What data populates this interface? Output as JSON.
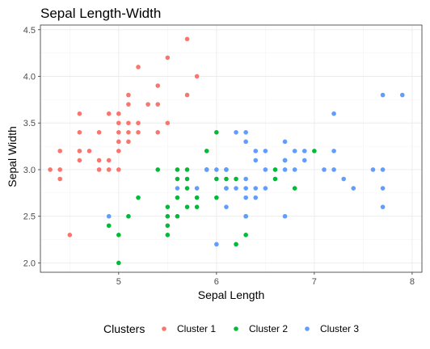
{
  "chart_data": {
    "type": "scatter",
    "title": "Sepal Length-Width",
    "xlabel": "Sepal Length",
    "ylabel": "Sepal Width",
    "xlim": [
      4.2,
      8.1
    ],
    "ylim": [
      1.9,
      4.55
    ],
    "x_ticks": [
      5,
      6,
      7,
      8
    ],
    "y_ticks": [
      2.0,
      2.5,
      3.0,
      3.5,
      4.0,
      4.5
    ],
    "x_tick_labels": [
      "5",
      "6",
      "7",
      "8"
    ],
    "y_tick_labels": [
      "2.0",
      "2.5",
      "3.0",
      "3.5",
      "4.0",
      "4.5"
    ],
    "grid": true,
    "legend": {
      "title": "Clusters",
      "position": "bottom"
    },
    "series": [
      {
        "name": "Cluster 1",
        "color": "#F8766D",
        "points": [
          [
            4.3,
            3.0
          ],
          [
            4.4,
            2.9
          ],
          [
            4.4,
            3.0
          ],
          [
            4.4,
            3.2
          ],
          [
            4.5,
            2.3
          ],
          [
            4.6,
            3.1
          ],
          [
            4.6,
            3.2
          ],
          [
            4.6,
            3.4
          ],
          [
            4.6,
            3.6
          ],
          [
            4.7,
            3.2
          ],
          [
            4.8,
            3.0
          ],
          [
            4.8,
            3.1
          ],
          [
            4.8,
            3.4
          ],
          [
            4.9,
            3.0
          ],
          [
            4.9,
            3.1
          ],
          [
            4.9,
            3.6
          ],
          [
            5.0,
            3.0
          ],
          [
            5.0,
            3.2
          ],
          [
            5.0,
            3.3
          ],
          [
            5.0,
            3.4
          ],
          [
            5.0,
            3.5
          ],
          [
            5.0,
            3.6
          ],
          [
            5.1,
            3.3
          ],
          [
            5.1,
            3.4
          ],
          [
            5.1,
            3.5
          ],
          [
            5.1,
            3.7
          ],
          [
            5.1,
            3.8
          ],
          [
            5.2,
            3.4
          ],
          [
            5.2,
            3.5
          ],
          [
            5.2,
            4.1
          ],
          [
            5.3,
            3.7
          ],
          [
            5.4,
            3.4
          ],
          [
            5.4,
            3.7
          ],
          [
            5.4,
            3.9
          ],
          [
            5.5,
            3.5
          ],
          [
            5.5,
            4.2
          ],
          [
            5.7,
            3.8
          ],
          [
            5.7,
            4.4
          ],
          [
            5.8,
            4.0
          ]
        ]
      },
      {
        "name": "Cluster 2",
        "color": "#00BA38",
        "points": [
          [
            4.9,
            2.4
          ],
          [
            5.0,
            2.0
          ],
          [
            5.0,
            2.3
          ],
          [
            5.1,
            2.5
          ],
          [
            5.2,
            2.7
          ],
          [
            5.4,
            3.0
          ],
          [
            5.5,
            2.3
          ],
          [
            5.5,
            2.4
          ],
          [
            5.5,
            2.5
          ],
          [
            5.5,
            2.6
          ],
          [
            5.6,
            2.5
          ],
          [
            5.6,
            2.7
          ],
          [
            5.6,
            2.9
          ],
          [
            5.6,
            3.0
          ],
          [
            5.7,
            2.6
          ],
          [
            5.7,
            2.8
          ],
          [
            5.7,
            2.9
          ],
          [
            5.7,
            3.0
          ],
          [
            5.8,
            2.6
          ],
          [
            5.8,
            2.7
          ],
          [
            5.9,
            3.0
          ],
          [
            5.9,
            3.2
          ],
          [
            6.0,
            2.7
          ],
          [
            6.0,
            2.9
          ],
          [
            6.0,
            3.4
          ],
          [
            6.1,
            2.8
          ],
          [
            6.1,
            2.9
          ],
          [
            6.1,
            3.0
          ],
          [
            6.2,
            2.2
          ],
          [
            6.2,
            2.9
          ],
          [
            6.3,
            2.3
          ],
          [
            6.3,
            2.5
          ],
          [
            6.6,
            2.9
          ],
          [
            6.6,
            3.0
          ],
          [
            6.7,
            3.1
          ],
          [
            6.8,
            2.8
          ],
          [
            7.0,
            3.2
          ]
        ]
      },
      {
        "name": "Cluster 3",
        "color": "#619CFF",
        "points": [
          [
            4.9,
            2.5
          ],
          [
            5.6,
            2.8
          ],
          [
            5.8,
            2.8
          ],
          [
            5.9,
            3.0
          ],
          [
            6.0,
            2.2
          ],
          [
            6.0,
            3.0
          ],
          [
            6.1,
            2.6
          ],
          [
            6.1,
            2.8
          ],
          [
            6.1,
            3.0
          ],
          [
            6.2,
            2.8
          ],
          [
            6.2,
            3.4
          ],
          [
            6.3,
            2.5
          ],
          [
            6.3,
            2.7
          ],
          [
            6.3,
            2.8
          ],
          [
            6.3,
            2.9
          ],
          [
            6.3,
            3.3
          ],
          [
            6.3,
            3.4
          ],
          [
            6.4,
            2.7
          ],
          [
            6.4,
            2.8
          ],
          [
            6.4,
            3.1
          ],
          [
            6.4,
            3.2
          ],
          [
            6.5,
            2.8
          ],
          [
            6.5,
            3.0
          ],
          [
            6.5,
            3.2
          ],
          [
            6.7,
            2.5
          ],
          [
            6.7,
            3.0
          ],
          [
            6.7,
            3.1
          ],
          [
            6.7,
            3.3
          ],
          [
            6.8,
            3.0
          ],
          [
            6.8,
            3.2
          ],
          [
            6.9,
            3.1
          ],
          [
            6.9,
            3.2
          ],
          [
            7.1,
            3.0
          ],
          [
            7.2,
            3.0
          ],
          [
            7.2,
            3.2
          ],
          [
            7.2,
            3.6
          ],
          [
            7.3,
            2.9
          ],
          [
            7.4,
            2.8
          ],
          [
            7.6,
            3.0
          ],
          [
            7.7,
            2.6
          ],
          [
            7.7,
            2.8
          ],
          [
            7.7,
            3.0
          ],
          [
            7.7,
            3.8
          ],
          [
            7.9,
            3.8
          ]
        ]
      }
    ]
  }
}
